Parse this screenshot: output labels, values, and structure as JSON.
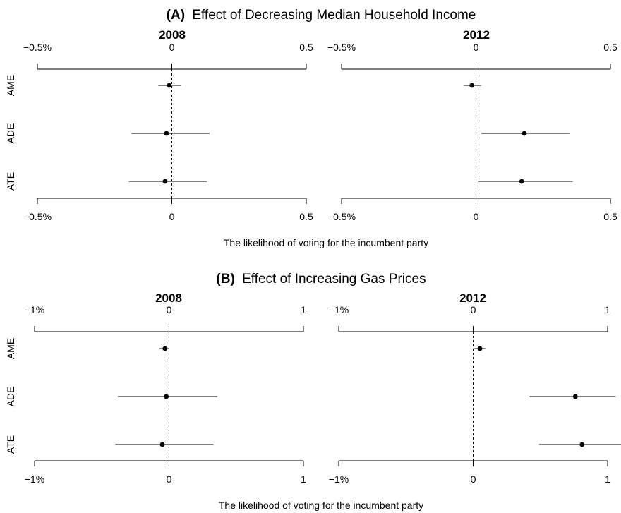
{
  "chart_data": [
    {
      "type": "scatter",
      "panel_label": "(A)",
      "title": "Effect of Decreasing Median Household Income",
      "xlabel": "The likelihood of voting for the incumbent party",
      "categories": [
        "AME",
        "ADE",
        "ATE"
      ],
      "subplots": [
        {
          "title": "2008",
          "xlim": [
            -0.5,
            0.5
          ],
          "tick_labels": [
            "−0.5%",
            "0",
            "0.5"
          ],
          "points": [
            {
              "category": "AME",
              "estimate": -0.01,
              "lower": -0.05,
              "upper": 0.035
            },
            {
              "category": "ADE",
              "estimate": -0.02,
              "lower": -0.15,
              "upper": 0.14
            },
            {
              "category": "ATE",
              "estimate": -0.025,
              "lower": -0.16,
              "upper": 0.13
            }
          ]
        },
        {
          "title": "2012",
          "xlim": [
            -0.5,
            0.5
          ],
          "tick_labels": [
            "−0.5%",
            "0",
            "0.5"
          ],
          "points": [
            {
              "category": "AME",
              "estimate": -0.015,
              "lower": -0.045,
              "upper": 0.02
            },
            {
              "category": "ADE",
              "estimate": 0.18,
              "lower": 0.02,
              "upper": 0.35
            },
            {
              "category": "ATE",
              "estimate": 0.17,
              "lower": 0.01,
              "upper": 0.36
            }
          ]
        }
      ]
    },
    {
      "type": "scatter",
      "panel_label": "(B)",
      "title": "Effect of Increasing Gas Prices",
      "xlabel": "The likelihood of voting for the incumbent party",
      "categories": [
        "AME",
        "ADE",
        "ATE"
      ],
      "subplots": [
        {
          "title": "2008",
          "xlim": [
            -1,
            1
          ],
          "tick_labels": [
            "−1%",
            "0",
            "1"
          ],
          "points": [
            {
              "category": "AME",
              "estimate": -0.03,
              "lower": -0.07,
              "upper": 0.0
            },
            {
              "category": "ADE",
              "estimate": -0.02,
              "lower": -0.38,
              "upper": 0.36
            },
            {
              "category": "ATE",
              "estimate": -0.05,
              "lower": -0.4,
              "upper": 0.33
            }
          ]
        },
        {
          "title": "2012",
          "xlim": [
            -1,
            1
          ],
          "tick_labels": [
            "−1%",
            "0",
            "1"
          ],
          "points": [
            {
              "category": "AME",
              "estimate": 0.05,
              "lower": 0.01,
              "upper": 0.09
            },
            {
              "category": "ADE",
              "estimate": 0.76,
              "lower": 0.42,
              "upper": 1.06
            },
            {
              "category": "ATE",
              "estimate": 0.81,
              "lower": 0.49,
              "upper": 1.1
            }
          ]
        }
      ]
    }
  ]
}
